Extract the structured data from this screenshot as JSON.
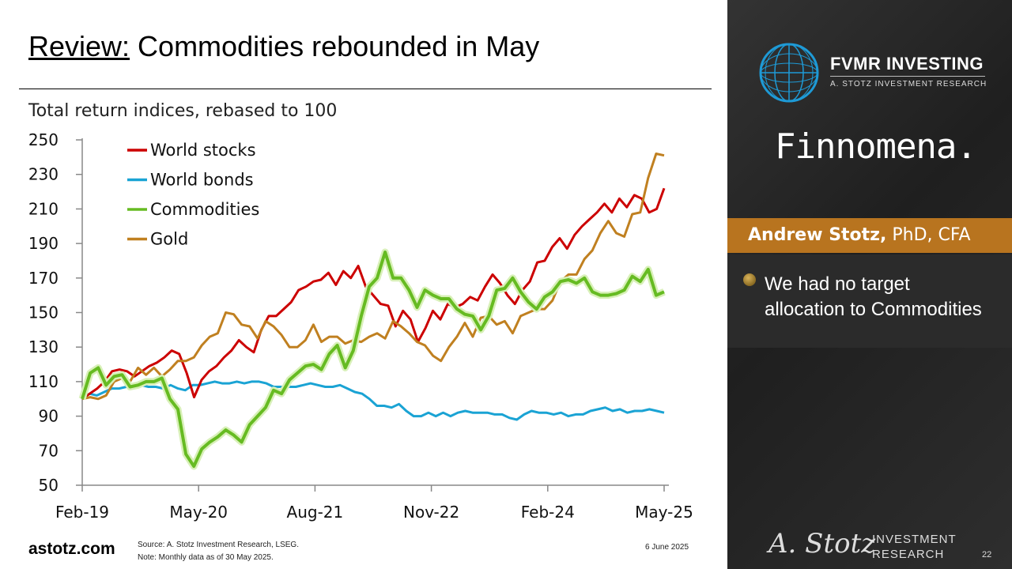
{
  "slide": {
    "title_underlined": "Review:",
    "title_rest": " Commodities rebounded in May",
    "site": "astotz.com",
    "source_line1": "Source: A. Stotz Investment Research, LSEG.",
    "source_line2": "Note: Monthly data as of 30 May 2025.",
    "date": "6 June 2025",
    "page_number": "22"
  },
  "panel": {
    "fvmr_name": "FVMR INVESTING",
    "fvmr_sub": "A. STOTZ INVESTMENT RESEARCH",
    "finnomena": "Finnomena.",
    "presenter_name": "Andrew Stotz,",
    "presenter_credentials": " PhD, CFA",
    "bullet": "We had no target allocation to Commodities",
    "logo_signature": "A. Stotz",
    "logo_line1": "INVESTMENT",
    "logo_line2": "RESEARCH"
  },
  "chart_data": {
    "type": "line",
    "title": "Total return indices, rebased to 100",
    "xlabel": "",
    "ylabel": "",
    "ylim": [
      50,
      250
    ],
    "yticks": [
      50,
      70,
      90,
      110,
      130,
      150,
      170,
      190,
      210,
      230,
      250
    ],
    "xtick_labels": [
      "Feb-19",
      "May-20",
      "Aug-21",
      "Nov-22",
      "Feb-24",
      "May-25"
    ],
    "x_start": "2019-02",
    "x_end": "2025-05",
    "legend_position": "top-left",
    "grid": false,
    "series": [
      {
        "name": "World stocks",
        "color": "#cc0000",
        "values": [
          100,
          103,
          106,
          110,
          116,
          117,
          116,
          113,
          116,
          119,
          121,
          124,
          128,
          126,
          115,
          101,
          111,
          116,
          119,
          124,
          128,
          134,
          130,
          127,
          140,
          148,
          148,
          152,
          156,
          163,
          165,
          168,
          169,
          173,
          166,
          174,
          170,
          177,
          165,
          160,
          155,
          154,
          142,
          151,
          146,
          133,
          141,
          151,
          146,
          155,
          153,
          155,
          159,
          157,
          165,
          172,
          167,
          160,
          155,
          163,
          168,
          179,
          180,
          188,
          193,
          187,
          195,
          200,
          204,
          208,
          213,
          208,
          216,
          211,
          218,
          216,
          208,
          210,
          222
        ]
      },
      {
        "name": "World bonds",
        "color": "#1aa3d4",
        "values": [
          100,
          103,
          102,
          104,
          106,
          106,
          107,
          107,
          108,
          107,
          107,
          106,
          108,
          106,
          105,
          108,
          108,
          109,
          110,
          109,
          109,
          110,
          109,
          110,
          110,
          109,
          107,
          107,
          107,
          107,
          108,
          109,
          108,
          107,
          107,
          108,
          106,
          104,
          103,
          100,
          96,
          96,
          95,
          97,
          93,
          90,
          90,
          92,
          90,
          92,
          90,
          92,
          93,
          92,
          92,
          92,
          91,
          91,
          89,
          88,
          91,
          93,
          92,
          92,
          91,
          92,
          90,
          91,
          91,
          93,
          94,
          95,
          93,
          94,
          92,
          93,
          93,
          94,
          93,
          92
        ]
      },
      {
        "name": "Commodities",
        "color": "#66bb22",
        "values": [
          100,
          115,
          118,
          108,
          113,
          114,
          107,
          108,
          110,
          110,
          112,
          100,
          94,
          68,
          61,
          71,
          75,
          78,
          82,
          79,
          75,
          85,
          90,
          95,
          105,
          103,
          111,
          115,
          119,
          120,
          117,
          126,
          131,
          118,
          128,
          148,
          165,
          170,
          185,
          170,
          170,
          163,
          153,
          163,
          160,
          158,
          158,
          152,
          149,
          148,
          140,
          148,
          163,
          164,
          170,
          162,
          156,
          152,
          159,
          162,
          168,
          169,
          167,
          170,
          162,
          160,
          160,
          161,
          163,
          171,
          168,
          175,
          160,
          162
        ]
      },
      {
        "name": "Gold",
        "color": "#c08020",
        "values": [
          100,
          101,
          100,
          102,
          110,
          112,
          110,
          118,
          114,
          118,
          113,
          117,
          122,
          122,
          124,
          131,
          136,
          138,
          150,
          149,
          143,
          142,
          135,
          145,
          142,
          137,
          130,
          130,
          134,
          143,
          133,
          136,
          136,
          132,
          134,
          133,
          136,
          138,
          135,
          145,
          142,
          138,
          133,
          131,
          125,
          122,
          130,
          136,
          144,
          136,
          147,
          148,
          143,
          145,
          138,
          148,
          150,
          152,
          152,
          157,
          168,
          172,
          172,
          181,
          186,
          196,
          203,
          196,
          194,
          207,
          208,
          228,
          242,
          241
        ]
      }
    ]
  }
}
